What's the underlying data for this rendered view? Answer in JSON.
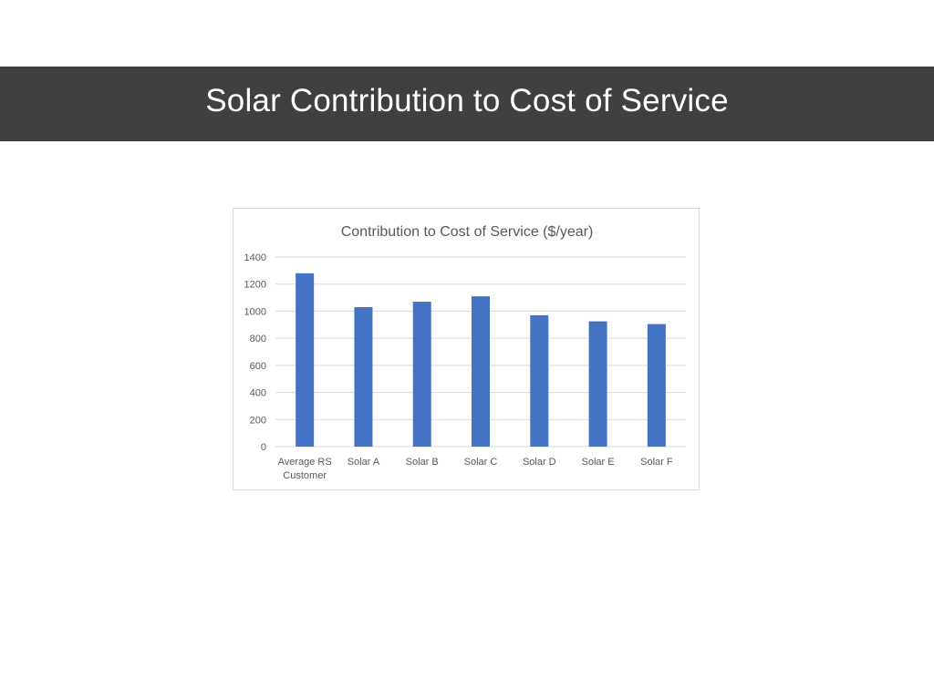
{
  "slide": {
    "title": "Solar Contribution to Cost of Service"
  },
  "colors": {
    "title_bar": "#404040",
    "bar": "#4472C4",
    "grid": "#d9d9d9",
    "axis_text": "#595959"
  },
  "chart_data": {
    "type": "bar",
    "title": "Contribution to Cost of Service ($/year)",
    "categories": [
      "Average RS Customer",
      "Solar A",
      "Solar B",
      "Solar C",
      "Solar D",
      "Solar E",
      "Solar F"
    ],
    "category_lines": [
      [
        "Average RS",
        "Customer"
      ],
      [
        "Solar A"
      ],
      [
        "Solar B"
      ],
      [
        "Solar C"
      ],
      [
        "Solar D"
      ],
      [
        "Solar E"
      ],
      [
        "Solar F"
      ]
    ],
    "values": [
      1280,
      1030,
      1070,
      1110,
      970,
      925,
      905
    ],
    "ylim": [
      0,
      1400
    ],
    "yticks": [
      0,
      200,
      400,
      600,
      800,
      1000,
      1200,
      1400
    ],
    "grid": true,
    "legend": "none"
  }
}
